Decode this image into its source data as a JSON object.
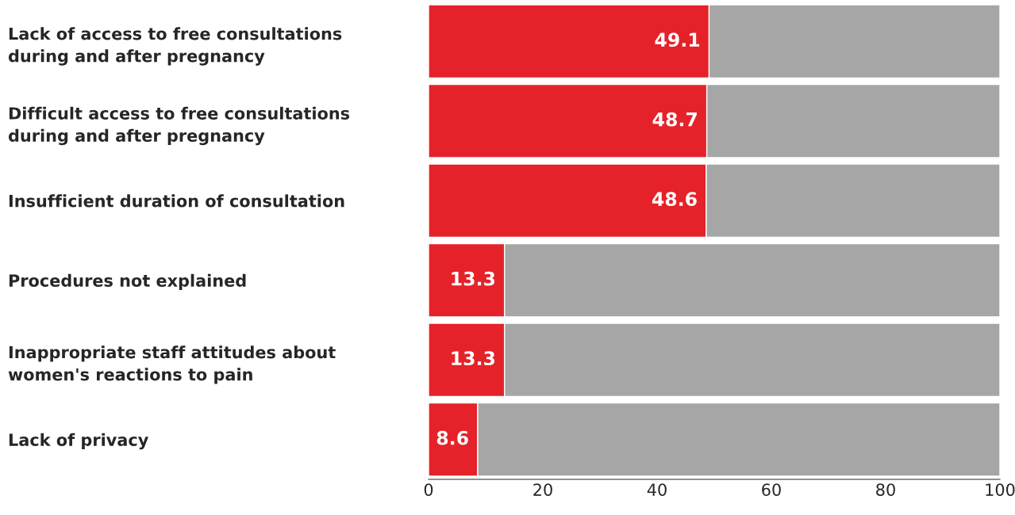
{
  "chart_data": {
    "type": "bar",
    "orientation": "horizontal",
    "stacked": true,
    "categories": [
      "Lack of access to free consultations during and after pregnancy",
      "Difficult access to free consultations during and after pregnancy",
      "Insufficient duration of consultation",
      "Procedures not explained",
      "Inappropriate staff attitudes about women's reactions to pain",
      "Lack of privacy"
    ],
    "series": [
      {
        "color": "#e52229",
        "values": [
          49.1,
          48.7,
          48.6,
          13.3,
          13.3,
          8.6
        ],
        "value_labels": [
          "49.1",
          "48.7",
          "48.6",
          "13.3",
          "13.3",
          "8.6"
        ]
      },
      {
        "color": "#a6a6a6",
        "values": [
          50.9,
          51.3,
          51.4,
          86.7,
          86.7,
          91.4
        ]
      }
    ],
    "xlim": [
      0,
      100
    ],
    "xticks": [
      0,
      20,
      40,
      60,
      80,
      100
    ],
    "grid": false
  }
}
